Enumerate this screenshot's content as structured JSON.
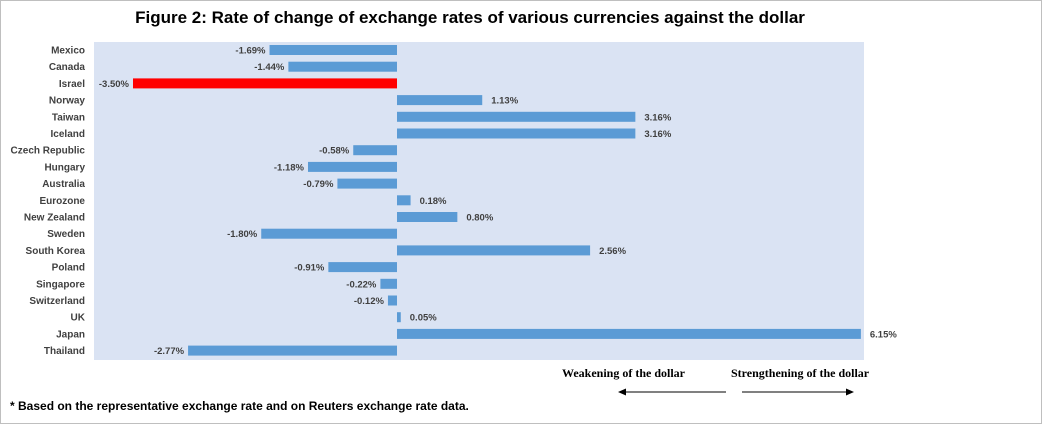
{
  "chart_data": {
    "type": "bar",
    "orientation": "horizontal",
    "title": "Figure 2: Rate of change of exchange rates of various currencies against the dollar",
    "categories": [
      "Mexico",
      "Canada",
      "Israel",
      "Norway",
      "Taiwan",
      "Iceland",
      "Czech Republic",
      "Hungary",
      "Australia",
      "Eurozone",
      "New Zealand",
      "Sweden",
      "South Korea",
      "Poland",
      "Singapore",
      "Switzerland",
      "UK",
      "Japan",
      "Thailand"
    ],
    "values": [
      -1.69,
      -1.44,
      -3.5,
      1.13,
      3.16,
      3.16,
      -0.58,
      -1.18,
      -0.79,
      0.18,
      0.8,
      -1.8,
      2.56,
      -0.91,
      -0.22,
      -0.12,
      0.05,
      6.15,
      -2.77
    ],
    "value_labels": [
      "-1.69%",
      "-1.44%",
      "-3.50%",
      "1.13%",
      "3.16%",
      "3.16%",
      "-0.58%",
      "-1.18%",
      "-0.79%",
      "0.18%",
      "0.80%",
      "-1.80%",
      "2.56%",
      "-0.91%",
      "-0.22%",
      "-0.12%",
      "0.05%",
      "6.15%",
      "-2.77%"
    ],
    "highlight_category": "Israel",
    "colors": {
      "bar": "#5b9bd5",
      "highlight": "#ff0000",
      "plot_bg": "#dae3f3"
    },
    "xlim": [
      -3.5,
      6.15
    ],
    "grid": false,
    "legend": "none"
  },
  "direction": {
    "weakening": "Weakening of  the dollar",
    "strengthening": "Strengthening of the dollar"
  },
  "footnote": "* Based on the representative exchange rate and on Reuters exchange rate data."
}
